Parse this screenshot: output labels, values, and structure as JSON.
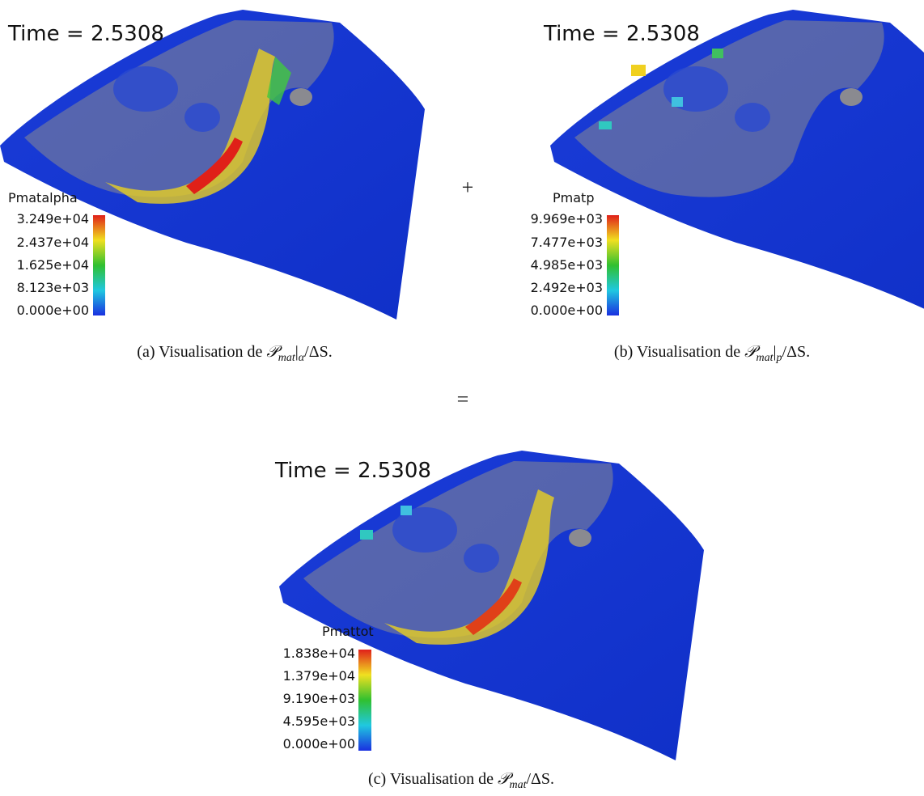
{
  "panels": [
    {
      "time": "Time = 2.5308",
      "colorbar": {
        "label": "Pmatalpha",
        "ticks": [
          "3.249e+04",
          "2.437e+04",
          "1.625e+04",
          "8.123e+03",
          "0.000e+00"
        ]
      },
      "caption": {
        "prefix": "(a) Visualisation de",
        "symbol": "𝒫",
        "sub": "mat",
        "bar": "|",
        "restriction": "α",
        "suffix": "/ΔS."
      }
    },
    {
      "time": "Time = 2.5308",
      "colorbar": {
        "label": "Pmatp",
        "ticks": [
          "9.969e+03",
          "7.477e+03",
          "4.985e+03",
          "2.492e+03",
          "0.000e+00"
        ]
      },
      "caption": {
        "prefix": "(b) Visualisation de",
        "symbol": "𝒫",
        "sub": "mat",
        "bar": "|",
        "restriction": "p",
        "suffix": "/ΔS."
      }
    },
    {
      "time": "Time = 2.5308",
      "colorbar": {
        "label": "Pmattot",
        "ticks": [
          "1.838e+04",
          "1.379e+04",
          "9.190e+03",
          "4.595e+03",
          "0.000e+00"
        ]
      },
      "caption": {
        "prefix": "(c) Visualisation de",
        "symbol": "𝒫",
        "sub": "mat",
        "suffix": "/ΔS."
      }
    }
  ],
  "operators": {
    "plus": "+",
    "equals": "="
  }
}
